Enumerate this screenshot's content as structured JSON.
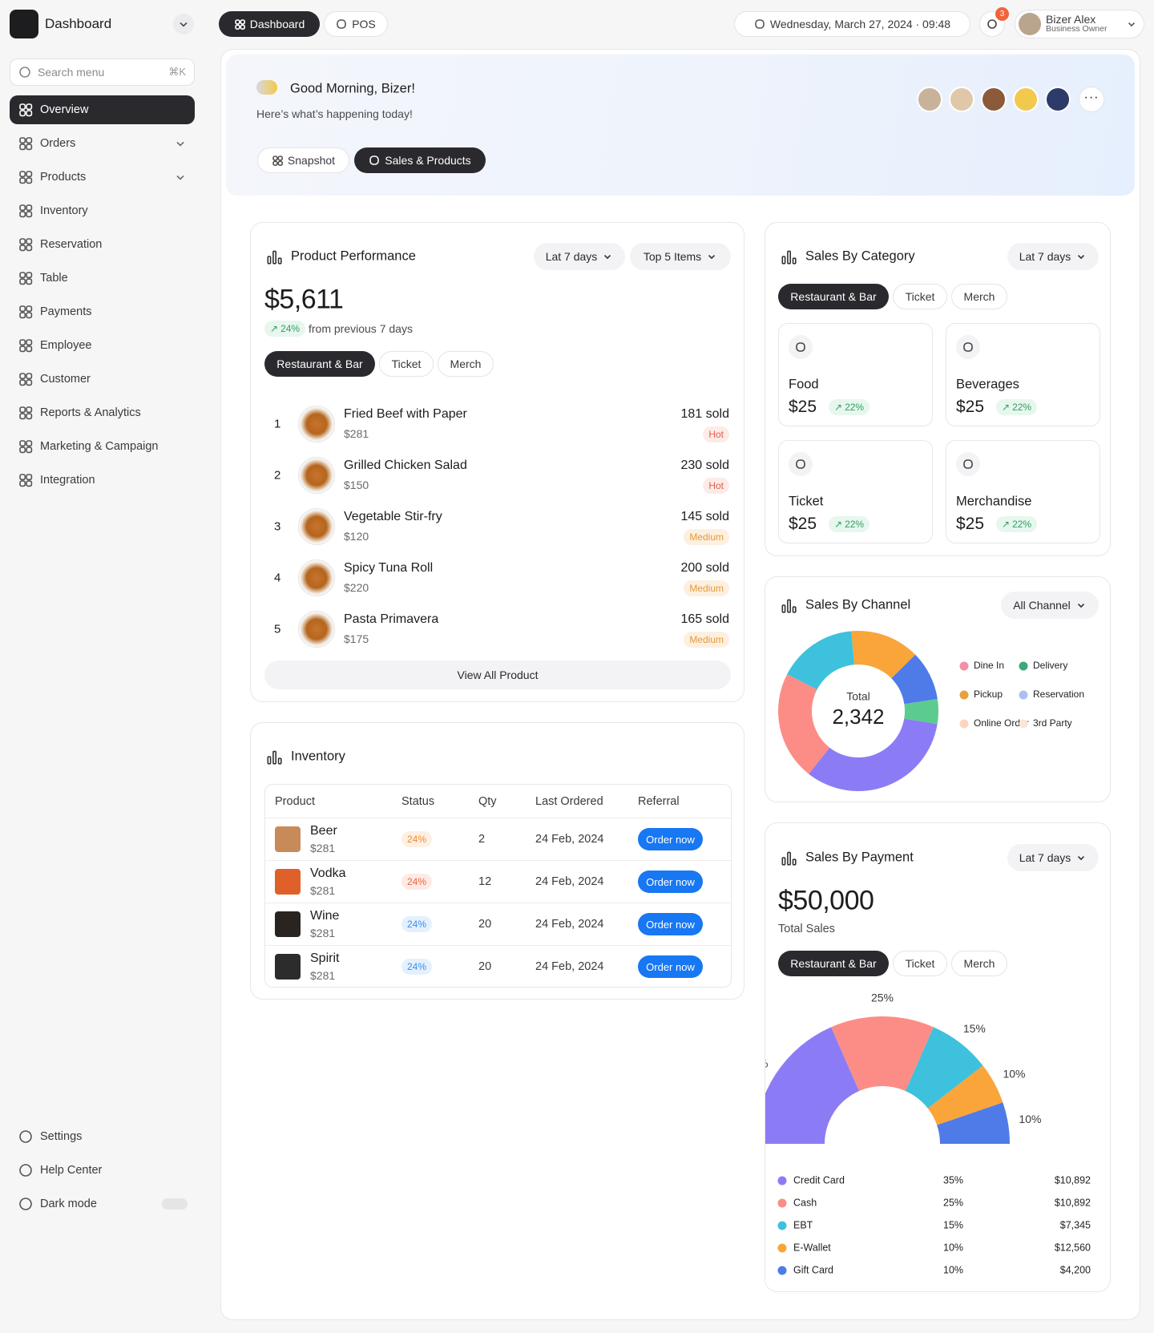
{
  "sidebar": {
    "brand": "Dashboard",
    "search_placeholder": "Search menu",
    "search_shortcut": "⌘K",
    "menu": [
      {
        "label": "Overview"
      },
      {
        "label": "Orders",
        "expandable": true
      },
      {
        "label": "Products",
        "expandable": true
      },
      {
        "label": "Inventory"
      },
      {
        "label": "Reservation"
      },
      {
        "label": "Table"
      },
      {
        "label": "Payments"
      },
      {
        "label": "Employee"
      },
      {
        "label": "Customer"
      },
      {
        "label": "Reports & Analytics"
      },
      {
        "label": "Marketing & Campaign"
      },
      {
        "label": "Integration"
      }
    ],
    "footer_menu": [
      "Settings",
      "Help Center",
      "Dark mode"
    ]
  },
  "topbar": {
    "tabs": [
      "Dashboard",
      "POS"
    ],
    "datetime": "Wednesday, March 27, 2024 · 09:48",
    "notification_count": "3",
    "user_name": "Bizer Alex",
    "user_role": "Business Owner"
  },
  "hero": {
    "greeting": "Good Morning, Bizer!",
    "subtitle": "Here’s what’s happening today!",
    "tabs": [
      "Snapshot",
      "Sales & Products"
    ]
  },
  "product_performance": {
    "title": "Product Performance",
    "filters": [
      "Lat 7 days",
      "Top 5 Items"
    ],
    "total": "$5,611",
    "change": "24%",
    "change_note": "from previous 7 days",
    "tabs": [
      "Restaurant & Bar",
      "Ticket",
      "Merch"
    ],
    "items": [
      {
        "rank": "1",
        "name": "Fried Beef with Paper",
        "price": "$281",
        "sold": "181 sold",
        "tag": "Hot"
      },
      {
        "rank": "2",
        "name": "Grilled Chicken Salad",
        "price": "$150",
        "sold": "230 sold",
        "tag": "Hot"
      },
      {
        "rank": "3",
        "name": "Vegetable Stir-fry",
        "price": "$120",
        "sold": "145 sold",
        "tag": "Medium"
      },
      {
        "rank": "4",
        "name": "Spicy Tuna Roll",
        "price": "$220",
        "sold": "200 sold",
        "tag": "Medium"
      },
      {
        "rank": "5",
        "name": "Pasta Primavera",
        "price": "$175",
        "sold": "165 sold",
        "tag": "Medium"
      }
    ],
    "button": "View All Product"
  },
  "inventory": {
    "title": "Inventory",
    "columns": [
      "Product",
      "Status",
      "Qty",
      "Last Ordered",
      "Referral"
    ],
    "rows": [
      {
        "product": "Beer",
        "price": "$281",
        "status": "24%",
        "status_color": "#f08c2e",
        "qty": "2",
        "last_ordered": "24 Feb, 2024",
        "action": "Order now"
      },
      {
        "product": "Vodka",
        "price": "$281",
        "status": "24%",
        "status_color": "#f0643a",
        "qty": "12",
        "last_ordered": "24 Feb, 2024",
        "action": "Order now"
      },
      {
        "product": "Wine",
        "price": "$281",
        "status": "24%",
        "status_color": "#3a8ef0",
        "qty": "20",
        "last_ordered": "24 Feb, 2024",
        "action": "Order now"
      },
      {
        "product": "Spirit",
        "price": "$281",
        "status": "24%",
        "status_color": "#3a8ef0",
        "qty": "20",
        "last_ordered": "24 Feb, 2024",
        "action": "Order now"
      }
    ]
  },
  "sales_by_category": {
    "title": "Sales By Category",
    "filter": "Lat 7 days",
    "tabs": [
      "Restaurant & Bar",
      "Ticket",
      "Merch"
    ],
    "cards": [
      {
        "name": "Food",
        "value": "$25",
        "change": "22%"
      },
      {
        "name": "Beverages",
        "value": "$25",
        "change": "22%"
      },
      {
        "name": "Ticket",
        "value": "$25",
        "change": "22%"
      },
      {
        "name": "Merchandise",
        "value": "$25",
        "change": "22%"
      }
    ]
  },
  "chart_data": [
    {
      "type": "donut",
      "title": "Sales By Channel",
      "filter": "All Channel",
      "center_label": "Total",
      "center_value": "2,342",
      "values": [
        14,
        10,
        5,
        33,
        22,
        16
      ],
      "colors": [
        "#f9a53a",
        "#4f7be8",
        "#5ccb8f",
        "#8b7cf6",
        "#fc8d86",
        "#3ec1dc"
      ],
      "legend": [
        {
          "name": "Dine In",
          "color": "#f48fa6"
        },
        {
          "name": "Delivery",
          "color": "#3aa97a"
        },
        {
          "name": "Pickup",
          "color": "#e8a13a"
        },
        {
          "name": "Reservation",
          "color": "#a9c0f5"
        },
        {
          "name": "Online Order",
          "color": "#fbd5c0"
        },
        {
          "name": "3rd Party",
          "color": "#fde4d6"
        }
      ]
    },
    {
      "type": "semi-donut",
      "title": "Sales By Payment",
      "filter": "Lat 7 days",
      "total": "$50,000",
      "total_label": "Total Sales",
      "tabs": [
        "Restaurant & Bar",
        "Ticket",
        "Merch"
      ],
      "categories": [
        "Credit Card",
        "Cash",
        "EBT",
        "E-Wallet",
        "Gift Card"
      ],
      "values": [
        35,
        25,
        15,
        10,
        10
      ],
      "value_labels": [
        "35%",
        "25%",
        "15%",
        "10%",
        "10%"
      ],
      "colors": [
        "#8b7cf6",
        "#fc8d86",
        "#3ec1dc",
        "#f9a53a",
        "#4f7be8"
      ],
      "amounts": [
        "$10,892",
        "$10,892",
        "$7,345",
        "$12,560",
        "$4,200"
      ]
    }
  ]
}
